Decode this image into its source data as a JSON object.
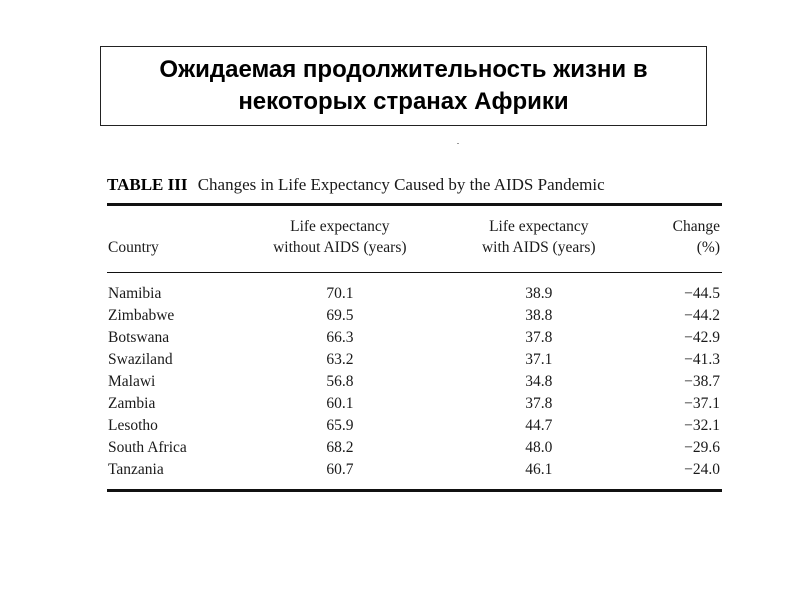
{
  "slide": {
    "title_line1": "Ожидаемая продолжительность жизни в",
    "title_line2": "некоторых странах Африки"
  },
  "table": {
    "label": "TABLE III",
    "caption": "Changes in Life Expectancy Caused by the AIDS Pandemic",
    "headers": {
      "country": "Country",
      "without_line1": "Life expectancy",
      "without_line2": "without AIDS (years)",
      "with_line1": "Life expectancy",
      "with_line2": "with AIDS (years)",
      "change_line1": "Change",
      "change_line2": "(%)"
    },
    "rows": [
      {
        "country": "Namibia",
        "without": "70.1",
        "with": "38.9",
        "change": "−44.5"
      },
      {
        "country": "Zimbabwe",
        "without": "69.5",
        "with": "38.8",
        "change": "−44.2"
      },
      {
        "country": "Botswana",
        "without": "66.3",
        "with": "37.8",
        "change": "−42.9"
      },
      {
        "country": "Swaziland",
        "without": "63.2",
        "with": "37.1",
        "change": "−41.3"
      },
      {
        "country": "Malawi",
        "without": "56.8",
        "with": "34.8",
        "change": "−38.7"
      },
      {
        "country": "Zambia",
        "without": "60.1",
        "with": "37.8",
        "change": "−37.1"
      },
      {
        "country": "Lesotho",
        "without": "65.9",
        "with": "44.7",
        "change": "−32.1"
      },
      {
        "country": "South Africa",
        "without": "68.2",
        "with": "48.0",
        "change": "−29.6"
      },
      {
        "country": "Tanzania",
        "without": "60.7",
        "with": "46.1",
        "change": "−24.0"
      }
    ]
  }
}
